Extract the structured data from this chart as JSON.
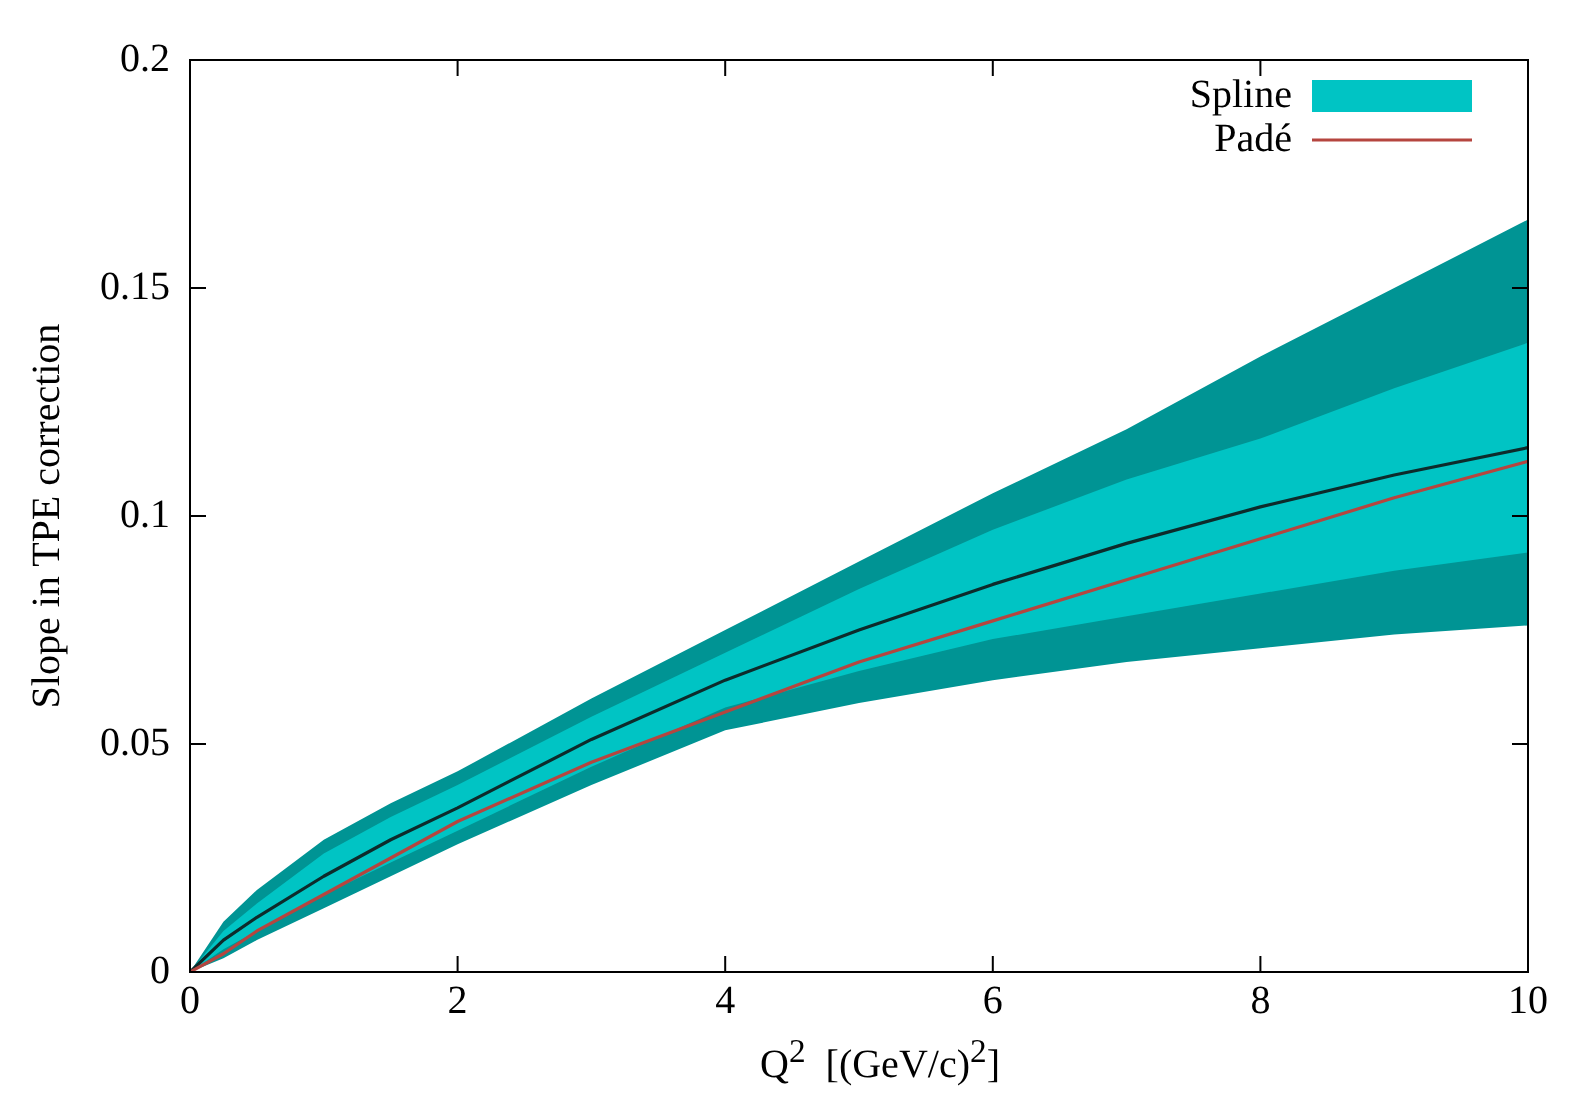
{
  "chart_data": {
    "type": "line",
    "xlabel": "Q$^{2}$  [(GeV/c)$^{2}$]",
    "ylabel": "Slope in TPE correction",
    "x": [
      0,
      0.25,
      0.5,
      1,
      1.5,
      2,
      3,
      4,
      5,
      6,
      7,
      8,
      9,
      10
    ],
    "series": [
      {
        "color": "#009494",
        "values": [
          null,
          null,
          null,
          null,
          null,
          null,
          null,
          null,
          null,
          null,
          null,
          null,
          null,
          null
        ],
        "lower": [
          0,
          0.003,
          0.007,
          0.014,
          0.021,
          0.028,
          0.041,
          0.053,
          0.059,
          0.064,
          0.068,
          0.071,
          0.074,
          0.076
        ],
        "upper": [
          0,
          0.011,
          0.018,
          0.029,
          0.037,
          0.044,
          0.06,
          0.075,
          0.09,
          0.105,
          0.119,
          0.135,
          0.15,
          0.165
        ]
      },
      {
        "name": "Spline",
        "color": "#00c4c4",
        "values": [
          null,
          null,
          null,
          null,
          null,
          null,
          null,
          null,
          null,
          null,
          null,
          null,
          null,
          null
        ],
        "lower": [
          0,
          0.005,
          0.009,
          0.017,
          0.024,
          0.031,
          0.045,
          0.058,
          0.066,
          0.073,
          0.078,
          0.083,
          0.088,
          0.092
        ],
        "upper": [
          0,
          0.009,
          0.015,
          0.026,
          0.034,
          0.041,
          0.056,
          0.07,
          0.084,
          0.097,
          0.108,
          0.117,
          0.128,
          0.138
        ]
      },
      {
        "color": "#0d2b2b",
        "values": [
          0,
          0.007,
          0.012,
          0.021,
          0.029,
          0.036,
          0.051,
          0.064,
          0.075,
          0.085,
          0.094,
          0.102,
          0.109,
          0.115
        ]
      },
      {
        "name": "Padé",
        "color": "#b5453f",
        "values": [
          0,
          0.004,
          0.009,
          0.017,
          0.025,
          0.033,
          0.046,
          0.057,
          0.068,
          0.077,
          0.086,
          0.095,
          0.104,
          0.112
        ]
      }
    ],
    "xlim": [
      0,
      10
    ],
    "xticks": [
      0,
      2,
      4,
      6,
      8,
      10
    ],
    "ylim": [
      0,
      0.2
    ],
    "yticks": [
      0,
      0.05,
      0.1,
      0.15,
      0.2
    ],
    "grid": false,
    "legend": "top right",
    "marker": "none",
    "line_style": "solid"
  }
}
